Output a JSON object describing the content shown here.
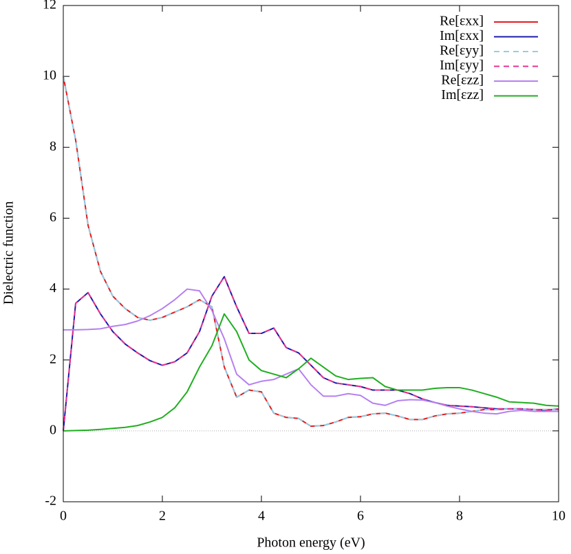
{
  "chart_data": {
    "type": "line",
    "x_label": "Photon energy (eV)",
    "y_label": "Dielectric function",
    "x": [
      0,
      0.25,
      0.5,
      0.75,
      1,
      1.25,
      1.5,
      1.75,
      2,
      2.25,
      2.5,
      2.75,
      3,
      3.25,
      3.5,
      3.75,
      4,
      4.25,
      4.5,
      4.75,
      5,
      5.25,
      5.5,
      5.75,
      6,
      6.25,
      6.5,
      6.75,
      7,
      7.25,
      7.5,
      7.75,
      8,
      8.25,
      8.5,
      8.75,
      9,
      9.25,
      9.5,
      9.75,
      10
    ],
    "series": [
      {
        "name": "Re[εxx]",
        "color": "#e41a1c",
        "dashed": false,
        "values": [
          10,
          8.2,
          5.8,
          4.5,
          3.8,
          3.45,
          3.2,
          3.12,
          3.2,
          3.35,
          3.5,
          3.7,
          3.5,
          1.8,
          0.95,
          1.15,
          1.1,
          0.5,
          0.38,
          0.35,
          0.13,
          0.15,
          0.25,
          0.38,
          0.4,
          0.48,
          0.5,
          0.42,
          0.32,
          0.32,
          0.42,
          0.48,
          0.5,
          0.55,
          0.6,
          0.6,
          0.62,
          0.62,
          0.6,
          0.6,
          0.6
        ]
      },
      {
        "name": "Im[εxx]",
        "color": "#1a1aaa",
        "dashed": false,
        "values": [
          0,
          3.6,
          3.9,
          3.3,
          2.8,
          2.45,
          2.2,
          1.98,
          1.85,
          1.95,
          2.2,
          2.8,
          3.8,
          4.35,
          3.5,
          2.75,
          2.75,
          2.9,
          2.35,
          2.2,
          1.85,
          1.5,
          1.35,
          1.3,
          1.25,
          1.15,
          1.15,
          1.15,
          1.05,
          0.9,
          0.8,
          0.72,
          0.7,
          0.68,
          0.65,
          0.62,
          0.62,
          0.62,
          0.6,
          0.58,
          0.62
        ]
      },
      {
        "name": "Re[εyy]",
        "color": "#8ecfe6",
        "dashed": true,
        "values": [
          10,
          8.2,
          5.8,
          4.5,
          3.8,
          3.45,
          3.2,
          3.12,
          3.2,
          3.35,
          3.5,
          3.7,
          3.5,
          1.8,
          0.95,
          1.15,
          1.1,
          0.5,
          0.38,
          0.35,
          0.13,
          0.15,
          0.25,
          0.38,
          0.4,
          0.48,
          0.5,
          0.42,
          0.32,
          0.32,
          0.42,
          0.48,
          0.5,
          0.55,
          0.6,
          0.6,
          0.62,
          0.62,
          0.6,
          0.6,
          0.6
        ]
      },
      {
        "name": "Im[εyy]",
        "color": "#e8308c",
        "dashed": true,
        "values": [
          0,
          3.6,
          3.9,
          3.3,
          2.8,
          2.45,
          2.2,
          1.98,
          1.85,
          1.95,
          2.2,
          2.8,
          3.8,
          4.35,
          3.5,
          2.75,
          2.75,
          2.9,
          2.35,
          2.2,
          1.85,
          1.5,
          1.35,
          1.3,
          1.25,
          1.15,
          1.15,
          1.15,
          1.05,
          0.9,
          0.8,
          0.72,
          0.7,
          0.68,
          0.65,
          0.62,
          0.62,
          0.62,
          0.6,
          0.58,
          0.62
        ]
      },
      {
        "name": "Re[εzz]",
        "color": "#b57ff0",
        "dashed": false,
        "values": [
          2.85,
          2.85,
          2.86,
          2.88,
          2.95,
          3,
          3.1,
          3.25,
          3.45,
          3.7,
          4,
          3.95,
          3.4,
          2.6,
          1.6,
          1.3,
          1.4,
          1.45,
          1.6,
          1.75,
          1.3,
          0.98,
          0.98,
          1.05,
          1,
          0.78,
          0.72,
          0.85,
          0.88,
          0.87,
          0.8,
          0.7,
          0.62,
          0.55,
          0.5,
          0.48,
          0.55,
          0.58,
          0.55,
          0.55,
          0.55
        ]
      },
      {
        "name": "Im[εzz]",
        "color": "#1fae1f",
        "dashed": false,
        "values": [
          0,
          0.01,
          0.02,
          0.04,
          0.07,
          0.1,
          0.15,
          0.25,
          0.38,
          0.65,
          1.1,
          1.8,
          2.4,
          3.3,
          2.8,
          2,
          1.7,
          1.6,
          1.5,
          1.75,
          2.05,
          1.8,
          1.55,
          1.45,
          1.48,
          1.5,
          1.25,
          1.15,
          1.15,
          1.15,
          1.2,
          1.22,
          1.22,
          1.15,
          1.05,
          0.95,
          0.82,
          0.8,
          0.78,
          0.72,
          0.7
        ]
      }
    ],
    "xlim": [
      0,
      10
    ],
    "xticks": [
      0,
      2,
      4,
      6,
      8,
      10
    ],
    "ylim": [
      -2,
      12
    ],
    "yticks": [
      -2,
      0,
      2,
      4,
      6,
      8,
      10,
      12
    ],
    "legend": "top-right"
  }
}
